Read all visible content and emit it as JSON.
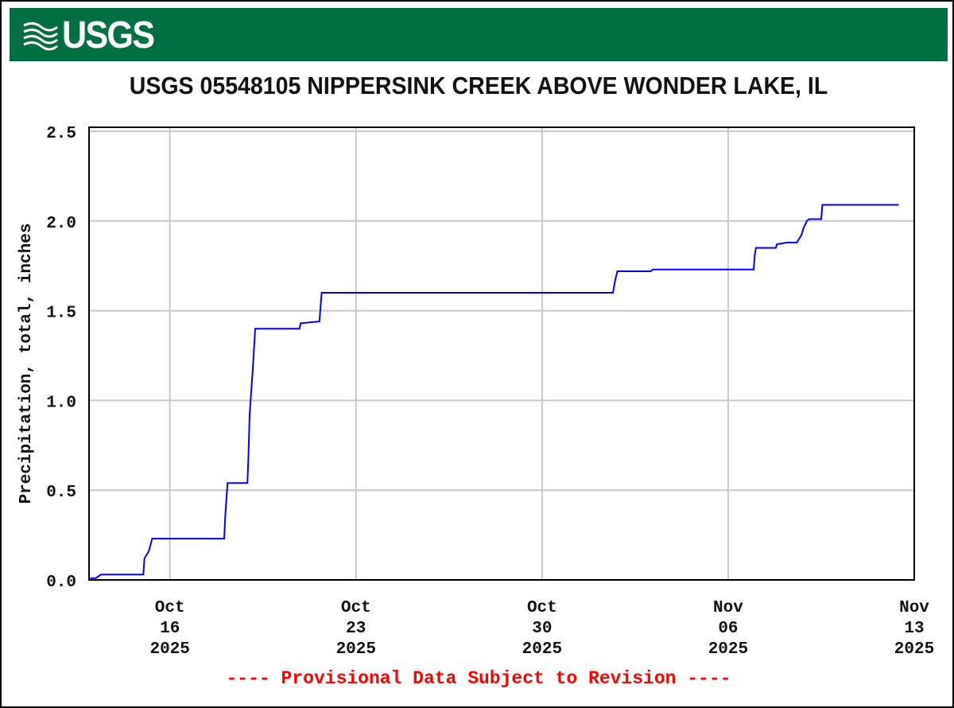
{
  "header": {
    "logo_text": "USGS",
    "brand_color": "#006f41"
  },
  "chart_data": {
    "type": "line",
    "title": "USGS 05548105 NIPPERSINK CREEK ABOVE WONDER LAKE, IL",
    "ylabel": "Precipitation, total, inches",
    "xlabel": "",
    "ylim": [
      0,
      2.5
    ],
    "xlim": [
      "2025-10-12T23:00",
      "2025-11-13T00:00"
    ],
    "grid": true,
    "line_color": "#0000ff",
    "yticks": [
      "0.0",
      "0.5",
      "1.0",
      "1.5",
      "2.0",
      "2.5"
    ],
    "xticks": [
      {
        "date": "2025-10-16T00:00",
        "label": [
          "Oct",
          "16",
          "2025"
        ]
      },
      {
        "date": "2025-10-23T00:00",
        "label": [
          "Oct",
          "23",
          "2025"
        ]
      },
      {
        "date": "2025-10-30T00:00",
        "label": [
          "Oct",
          "30",
          "2025"
        ]
      },
      {
        "date": "2025-11-06T00:00",
        "label": [
          "Nov",
          "06",
          "2025"
        ]
      },
      {
        "date": "2025-11-13T00:00",
        "label": [
          "Nov",
          "13",
          "2025"
        ]
      }
    ],
    "series": [
      {
        "points": [
          [
            "2025-10-13T00:00",
            0.01
          ],
          [
            "2025-10-13T05:00",
            0.01
          ],
          [
            "2025-10-13T10:00",
            0.03
          ],
          [
            "2025-10-15T00:00",
            0.03
          ],
          [
            "2025-10-15T01:00",
            0.12
          ],
          [
            "2025-10-15T05:00",
            0.16
          ],
          [
            "2025-10-15T08:00",
            0.23
          ],
          [
            "2025-10-18T01:00",
            0.23
          ],
          [
            "2025-10-18T02:00",
            0.36
          ],
          [
            "2025-10-18T04:00",
            0.54
          ],
          [
            "2025-10-18T22:00",
            0.54
          ],
          [
            "2025-10-18T23:00",
            0.7
          ],
          [
            "2025-10-19T00:00",
            0.92
          ],
          [
            "2025-10-19T03:00",
            1.19
          ],
          [
            "2025-10-19T05:00",
            1.4
          ],
          [
            "2025-10-20T21:00",
            1.4
          ],
          [
            "2025-10-20T22:00",
            1.43
          ],
          [
            "2025-10-21T15:00",
            1.44
          ],
          [
            "2025-10-21T16:00",
            1.52
          ],
          [
            "2025-10-21T17:00",
            1.6
          ],
          [
            "2025-11-01T16:00",
            1.6
          ],
          [
            "2025-11-01T18:00",
            1.67
          ],
          [
            "2025-11-01T20:00",
            1.72
          ],
          [
            "2025-11-03T02:00",
            1.72
          ],
          [
            "2025-11-03T04:00",
            1.73
          ],
          [
            "2025-11-06T23:00",
            1.73
          ],
          [
            "2025-11-07T00:00",
            1.81
          ],
          [
            "2025-11-07T01:00",
            1.85
          ],
          [
            "2025-11-07T19:00",
            1.85
          ],
          [
            "2025-11-07T20:00",
            1.87
          ],
          [
            "2025-11-08T05:00",
            1.88
          ],
          [
            "2025-11-08T14:00",
            1.88
          ],
          [
            "2025-11-08T18:00",
            1.92
          ],
          [
            "2025-11-08T20:00",
            1.96
          ],
          [
            "2025-11-08T23:00",
            2.0
          ],
          [
            "2025-11-09T01:00",
            2.01
          ],
          [
            "2025-11-09T12:00",
            2.01
          ],
          [
            "2025-11-09T13:00",
            2.09
          ],
          [
            "2025-11-12T10:00",
            2.09
          ]
        ]
      }
    ],
    "annotation": "---- Provisional Data Subject to Revision ----"
  }
}
